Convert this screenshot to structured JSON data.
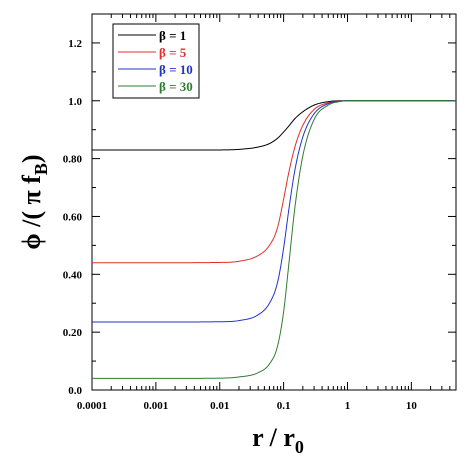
{
  "chart_data": {
    "type": "line",
    "xscale": "log",
    "xlim": [
      0.0001,
      50
    ],
    "ylim": [
      0.0,
      1.3
    ],
    "xticks": [
      {
        "value": 0.0001,
        "label": "0.0001"
      },
      {
        "value": 0.001,
        "label": "0.001"
      },
      {
        "value": 0.01,
        "label": "0.01"
      },
      {
        "value": 0.1,
        "label": "0.1"
      },
      {
        "value": 1,
        "label": "1"
      },
      {
        "value": 10,
        "label": "10"
      }
    ],
    "yticks": [
      {
        "value": 0.0,
        "label": "0.0"
      },
      {
        "value": 0.2,
        "label": "0.20"
      },
      {
        "value": 0.4,
        "label": "0.40"
      },
      {
        "value": 0.6,
        "label": "0.60"
      },
      {
        "value": 0.8,
        "label": "0.80"
      },
      {
        "value": 1.0,
        "label": "1.0"
      },
      {
        "value": 1.2,
        "label": "1.2"
      }
    ],
    "xlabel": {
      "main": "r / r",
      "sub": "0"
    },
    "ylabel": {
      "main": "ϕ /( π f",
      "sub": "B",
      "close": ")"
    },
    "legend_position": "top-left",
    "series": [
      {
        "name": "β = 1",
        "color": "#000000",
        "x": [
          0.0001,
          0.001,
          0.01,
          0.02,
          0.04,
          0.06,
          0.08,
          0.1,
          0.12,
          0.15,
          0.2,
          0.3,
          0.5,
          0.8,
          1,
          10,
          50
        ],
        "y": [
          0.83,
          0.83,
          0.83,
          0.832,
          0.84,
          0.852,
          0.87,
          0.892,
          0.912,
          0.938,
          0.962,
          0.985,
          0.997,
          1.0,
          1.0,
          1.0,
          1.0
        ]
      },
      {
        "name": "β = 5",
        "color": "#e0302a",
        "x": [
          0.0001,
          0.001,
          0.01,
          0.02,
          0.04,
          0.06,
          0.08,
          0.1,
          0.12,
          0.15,
          0.2,
          0.3,
          0.5,
          0.8,
          1,
          10,
          50
        ],
        "y": [
          0.44,
          0.44,
          0.441,
          0.445,
          0.465,
          0.5,
          0.56,
          0.66,
          0.75,
          0.84,
          0.915,
          0.97,
          0.993,
          0.999,
          1.0,
          1.0,
          1.0
        ]
      },
      {
        "name": "β = 10",
        "color": "#2233cc",
        "x": [
          0.0001,
          0.001,
          0.01,
          0.02,
          0.04,
          0.06,
          0.08,
          0.1,
          0.12,
          0.15,
          0.2,
          0.3,
          0.5,
          0.8,
          1,
          10,
          50
        ],
        "y": [
          0.235,
          0.235,
          0.236,
          0.24,
          0.26,
          0.3,
          0.37,
          0.49,
          0.62,
          0.76,
          0.875,
          0.955,
          0.99,
          0.999,
          1.0,
          1.0,
          1.0
        ]
      },
      {
        "name": "β = 30",
        "color": "#2e7d32",
        "x": [
          0.0001,
          0.001,
          0.01,
          0.02,
          0.04,
          0.06,
          0.08,
          0.1,
          0.12,
          0.15,
          0.2,
          0.3,
          0.5,
          0.8,
          1,
          10,
          50
        ],
        "y": [
          0.04,
          0.04,
          0.041,
          0.045,
          0.06,
          0.09,
          0.15,
          0.27,
          0.43,
          0.63,
          0.81,
          0.935,
          0.985,
          0.998,
          1.0,
          1.0,
          1.0
        ]
      }
    ]
  }
}
